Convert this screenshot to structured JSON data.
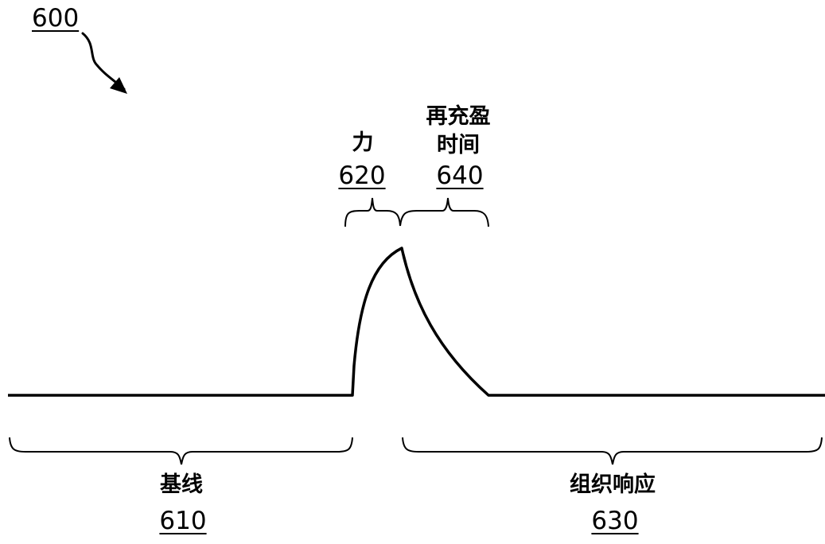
{
  "figure": {
    "ref": "600"
  },
  "force": {
    "label": "力",
    "ref": "620"
  },
  "refill": {
    "label_line1": "再充盈",
    "label_line2": "时间",
    "ref": "640"
  },
  "baseline": {
    "label": "基线",
    "ref": "610"
  },
  "tissue": {
    "label": "组织响应",
    "ref": "630"
  }
}
